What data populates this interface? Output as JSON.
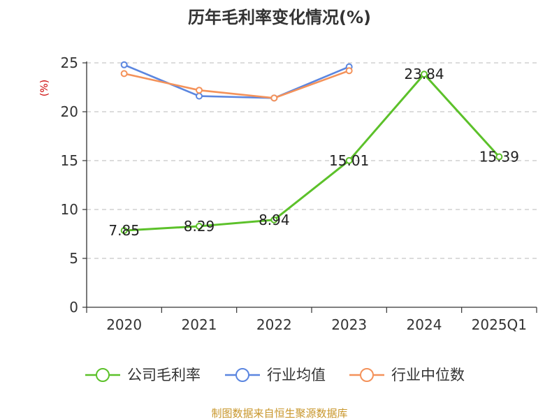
{
  "chart_data": {
    "type": "line",
    "title": "历年毛利率变化情况(%)",
    "unit_label": "(%)",
    "xlabel": "",
    "ylabel": "",
    "categories": [
      "2020",
      "2021",
      "2022",
      "2023",
      "2024",
      "2025Q1"
    ],
    "ylim": [
      0,
      25
    ],
    "yticks": [
      0,
      5,
      10,
      15,
      20,
      25
    ],
    "grid": "horizontal-dashed",
    "legend_position": "bottom",
    "series": [
      {
        "name": "公司毛利率",
        "color": "#5cc12a",
        "values": [
          7.85,
          8.29,
          8.94,
          15.01,
          23.84,
          15.39
        ],
        "labels": [
          "7.85",
          "8.29",
          "8.94",
          "15.01",
          "23.84",
          "15.39"
        ]
      },
      {
        "name": "行业均值",
        "color": "#5b86e0",
        "values": [
          24.8,
          21.6,
          21.4,
          24.6,
          null,
          null
        ]
      },
      {
        "name": "行业中位数",
        "color": "#f4925a",
        "values": [
          23.9,
          22.2,
          21.4,
          24.2,
          null,
          null
        ]
      }
    ]
  },
  "source_text": "制图数据来自恒生聚源数据库"
}
